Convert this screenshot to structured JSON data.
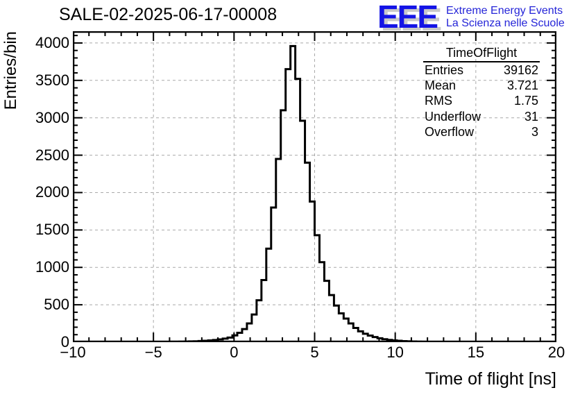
{
  "header": {
    "title": "SALE-02-2025-06-17-00008"
  },
  "logo": {
    "text": "EEE",
    "tagline_line1": "Extreme Energy Events",
    "tagline_line2": "La Scienza nelle Scuole",
    "color": "#1414e6",
    "shadow_color": "#c9c9c9",
    "tagline_color": "#2525d8"
  },
  "stats_box": {
    "title": "TimeOfFlight",
    "rows": [
      {
        "label": "Entries",
        "value": "39162"
      },
      {
        "label": "Mean",
        "value": "3.721"
      },
      {
        "label": "RMS",
        "value": "1.75"
      },
      {
        "label": "Underflow",
        "value": "31"
      },
      {
        "label": "Overflow",
        "value": "3"
      }
    ]
  },
  "chart_data": {
    "type": "bar",
    "style": "step-histogram-outline",
    "title": "SALE-02-2025-06-17-00008",
    "xlabel": "Time of flight [ns]",
    "ylabel": "Entries/bin",
    "xlim": [
      -10,
      20
    ],
    "ylim": [
      0,
      4157
    ],
    "grid": true,
    "grid_color": "#a9a9a9",
    "line_color": "#000000",
    "bin_start": -10,
    "bin_width": 0.3,
    "x_ticks": [
      -10,
      -5,
      0,
      5,
      10,
      15,
      20
    ],
    "x_tick_labels": [
      "−10",
      "−5",
      "0",
      "5",
      "10",
      "15",
      "20"
    ],
    "x_minor_step": 1,
    "y_ticks": [
      0,
      500,
      1000,
      1500,
      2000,
      2500,
      3000,
      3500,
      4000
    ],
    "y_tick_labels": [
      "0",
      "500",
      "1000",
      "1500",
      "2000",
      "2500",
      "3000",
      "3500",
      "4000"
    ],
    "y_minor_step": 100,
    "values": [
      0,
      1,
      0,
      1,
      1,
      0,
      1,
      1,
      1,
      2,
      2,
      2,
      2,
      3,
      3,
      3,
      4,
      4,
      5,
      5,
      6,
      6,
      7,
      8,
      10,
      12,
      15,
      18,
      23,
      29,
      37,
      48,
      62,
      90,
      125,
      175,
      250,
      370,
      560,
      830,
      1250,
      1800,
      2450,
      3100,
      3650,
      3959,
      3520,
      2960,
      2400,
      1880,
      1430,
      1070,
      820,
      630,
      490,
      385,
      315,
      250,
      190,
      145,
      112,
      88,
      68,
      52,
      40,
      30,
      23,
      18,
      14,
      11,
      9,
      7,
      6,
      5,
      4,
      4,
      3,
      3,
      2,
      2,
      2,
      2,
      1,
      1,
      1,
      1,
      1,
      1,
      0,
      1,
      0,
      1,
      0,
      1,
      0,
      0,
      1,
      0,
      0,
      1
    ]
  }
}
